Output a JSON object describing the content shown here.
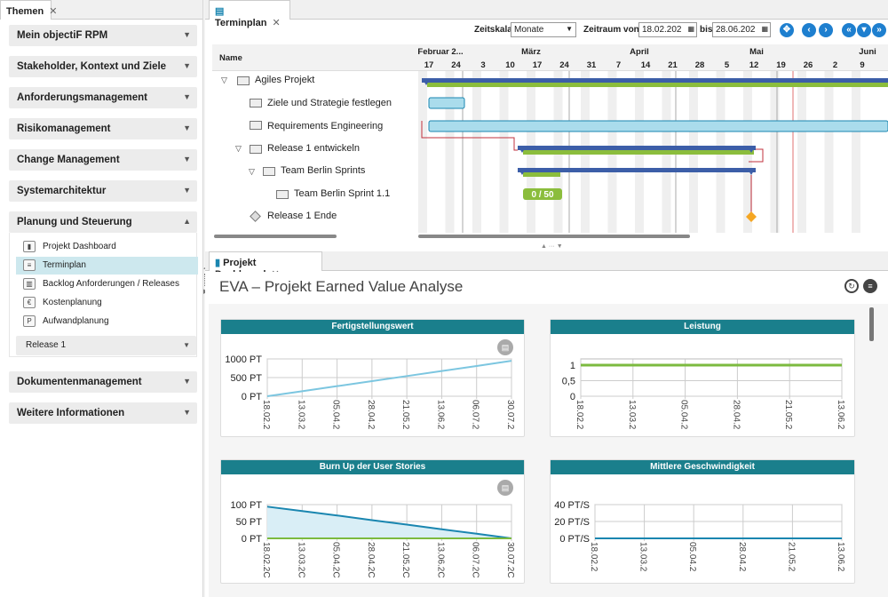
{
  "left_panel": {
    "tab_label": "Themen",
    "sections": [
      {
        "label": "Mein objectiF RPM"
      },
      {
        "label": "Stakeholder, Kontext und Ziele"
      },
      {
        "label": "Anforderungsmanagement"
      },
      {
        "label": "Risikomanagement"
      },
      {
        "label": "Change Management"
      },
      {
        "label": "Systemarchitektur"
      },
      {
        "label": "Planung und Steuerung"
      },
      {
        "label": "Dokumentenmanagement"
      },
      {
        "label": "Weitere Informationen"
      }
    ],
    "planning_items": [
      {
        "label": "Projekt Dashboard",
        "icon": "dashboard-icon"
      },
      {
        "label": "Terminplan",
        "icon": "gantt-icon"
      },
      {
        "label": "Backlog Anforderungen / Releases",
        "icon": "backlog-icon"
      },
      {
        "label": "Kostenplanung",
        "icon": "cost-icon"
      },
      {
        "label": "Aufwandplanung",
        "icon": "effort-icon"
      }
    ],
    "release_dropdown": "Release 1"
  },
  "gantt": {
    "tab_label": "Terminplan",
    "zeitskala_label": "Zeitskala",
    "zeitskala_value": "Monate",
    "zeitraum_von_label": "Zeitraum von",
    "zeitraum_von_value": "18.02.202",
    "bis_label": "bis",
    "bis_value": "28.06.202",
    "name_header": "Name",
    "months": [
      "Februar 2...",
      "März",
      "April",
      "Mai",
      "Juni"
    ],
    "days": [
      "17",
      "24",
      "3",
      "10",
      "17",
      "24",
      "31",
      "7",
      "14",
      "21",
      "28",
      "5",
      "12",
      "19",
      "26",
      "2",
      "9"
    ],
    "rows": [
      {
        "name": "Agiles Projekt"
      },
      {
        "name": "Ziele und Strategie festlegen"
      },
      {
        "name": "Requirements Engineering"
      },
      {
        "name": "Release 1 entwickeln"
      },
      {
        "name": "Team Berlin Sprints"
      },
      {
        "name": "Team Berlin Sprint 1.1"
      },
      {
        "name": "Release 1 Ende"
      }
    ],
    "sprint_badge": "0 / 50"
  },
  "dashboard": {
    "tab_label": "Projekt Dashboard",
    "title": "EVA – Projekt Earned Value Analyse",
    "cards": [
      {
        "title": "Fertigstellungswert"
      },
      {
        "title": "Leistung"
      },
      {
        "title": "Burn Up der User Stories"
      },
      {
        "title": "Mittlere Geschwindigkeit"
      }
    ]
  },
  "chart_data": [
    {
      "type": "line",
      "title": "Fertigstellungswert",
      "x": [
        "18.02.2",
        "13.03.2",
        "05.04.2",
        "28.04.2",
        "21.05.2",
        "13.06.2",
        "06.07.2",
        "30.07.2"
      ],
      "y_ticks": [
        "0 PT",
        "500 PT",
        "1000 PT"
      ],
      "ylim": [
        0,
        1000
      ],
      "series": [
        {
          "values": [
            0,
            135,
            270,
            405,
            540,
            675,
            810,
            950
          ]
        }
      ],
      "color": "#7cc6e0"
    },
    {
      "type": "line",
      "title": "Leistung",
      "x": [
        "18.02.2",
        "13.03.2",
        "05.04.2",
        "28.04.2",
        "21.05.2",
        "13.06.2"
      ],
      "y_ticks": [
        "0",
        "0,5",
        "1"
      ],
      "ylim": [
        0,
        1.2
      ],
      "series": [
        {
          "values": [
            1,
            1,
            1,
            1,
            1,
            1
          ]
        }
      ],
      "color": "#7cba3f"
    },
    {
      "type": "area",
      "title": "Burn Up der User Stories",
      "x": [
        "18.02.2C",
        "13.03.2C",
        "05.04.2C",
        "28.04.2C",
        "21.05.2C",
        "13.06.2C",
        "06.07.2C",
        "30.07.2C"
      ],
      "y_ticks": [
        "0 PT",
        "50 PT",
        "100 PT"
      ],
      "ylim": [
        0,
        115
      ],
      "series": [
        {
          "values": [
            108,
            93,
            78,
            62,
            47,
            31,
            16,
            0
          ]
        },
        {
          "values": [
            0,
            0,
            0,
            0,
            0,
            0,
            0,
            0
          ]
        }
      ],
      "colors": [
        "#1a86b0",
        "#7cba3f"
      ]
    },
    {
      "type": "line",
      "title": "Mittlere Geschwindigkeit",
      "x": [
        "18.02.2",
        "13.03.2",
        "05.04.2",
        "28.04.2",
        "21.05.2",
        "13.06.2"
      ],
      "y_ticks": [
        "0 PT/S",
        "20 PT/S",
        "40 PT/S"
      ],
      "ylim": [
        0,
        45
      ],
      "series": [
        {
          "values": [
            0,
            0,
            0,
            0,
            0,
            0
          ]
        }
      ],
      "color": "#1a86b0"
    }
  ]
}
